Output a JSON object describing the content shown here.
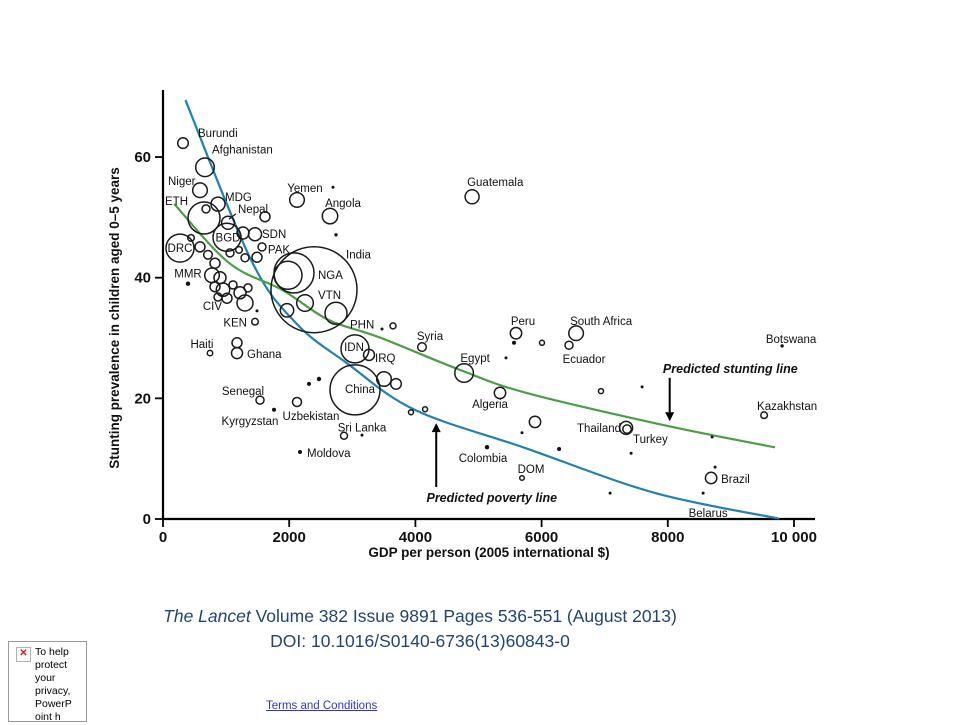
{
  "chart_data": {
    "type": "scatter",
    "title": "",
    "xlabel": "GDP per person (2005 international $)",
    "ylabel": "Stunting prevalence in children aged 0–5 years",
    "xlim": [
      0,
      10000
    ],
    "ylim": [
      0,
      71
    ],
    "grid": false,
    "x_ticks": [
      {
        "value": 0,
        "label": "0"
      },
      {
        "value": 2000,
        "label": "2000"
      },
      {
        "value": 4000,
        "label": "4000"
      },
      {
        "value": 6000,
        "label": "6000"
      },
      {
        "value": 8000,
        "label": "8000"
      },
      {
        "value": 10000,
        "label": "10 000"
      }
    ],
    "y_ticks": [
      {
        "value": 0,
        "label": "0"
      },
      {
        "value": 20,
        "label": "20"
      },
      {
        "value": 40,
        "label": "40"
      },
      {
        "value": 60,
        "label": "60"
      }
    ],
    "series": [
      {
        "name": "countries",
        "points": [
          {
            "name": "Burundi",
            "gdp": 317,
            "stunting": 62.3,
            "r": 5.3,
            "solid": 0,
            "label": {
              "dx": 15,
              "dy": -6,
              "anchor": "start"
            }
          },
          {
            "name": "Afghanistan",
            "gdp": 666,
            "stunting": 58.3,
            "r": 9.3,
            "solid": 0,
            "label": {
              "dx": 7,
              "dy": -14,
              "anchor": "start"
            }
          },
          {
            "name": "Niger",
            "gdp": 586,
            "stunting": 54.5,
            "r": 7.3,
            "solid": 0,
            "label": {
              "dx": -32,
              "dy": -5,
              "anchor": "start"
            }
          },
          {
            "name": "ETH",
            "gdp": 650,
            "stunting": 49.9,
            "r": 16,
            "solid": 0,
            "label": {
              "dx": -39,
              "dy": -13,
              "anchor": "start"
            }
          },
          {
            "name": "MDG",
            "gdp": 872,
            "stunting": 52.2,
            "r": 7,
            "solid": 0,
            "label": {
              "dx": 7,
              "dy": -3,
              "anchor": "start"
            }
          },
          {
            "name": "Nepal",
            "gdp": 1030,
            "stunting": 49.1,
            "r": 6.5,
            "solid": 0,
            "label": {
              "dx": 10,
              "dy": -10,
              "anchor": "start"
            }
          },
          {
            "name": "BGD",
            "gdp": 1014,
            "stunting": 46.7,
            "r": 14,
            "solid": 0,
            "label": {
              "dx": 1,
              "dy": 4,
              "anchor": "middle"
            }
          },
          {
            "name": "SDN",
            "gdp": 1458,
            "stunting": 47.2,
            "r": 6.5,
            "solid": 0,
            "label": {
              "dx": 7,
              "dy": 4,
              "anchor": "start"
            }
          },
          {
            "name": "DRC",
            "gdp": 269,
            "stunting": 44.9,
            "r": 14,
            "solid": 0,
            "label": {
              "dx": 0,
              "dy": 4,
              "anchor": "middle"
            }
          },
          {
            "name": "PAK",
            "gdp": 1981,
            "stunting": 40.4,
            "r": 14,
            "solid": 0,
            "label": {
              "dx": -9,
              "dy": -22,
              "anchor": "middle"
            }
          },
          {
            "name": "NGA",
            "gdp": 2076,
            "stunting": 40.8,
            "r": 20,
            "solid": 0,
            "label": {
              "dx": 24,
              "dy": 6,
              "anchor": "start"
            }
          },
          {
            "name": "India",
            "gdp": 2393,
            "stunting": 38.0,
            "r": 43,
            "solid": 0,
            "label": {
              "dx": 32,
              "dy": -31,
              "anchor": "start"
            }
          },
          {
            "name": "VTN",
            "gdp": 2251,
            "stunting": 35.8,
            "r": 8.3,
            "solid": 0,
            "label": {
              "dx": 13,
              "dy": -4,
              "anchor": "start"
            }
          },
          {
            "name": "PHN",
            "gdp": 2742,
            "stunting": 34.1,
            "r": 11,
            "solid": 0,
            "label": {
              "dx": 14,
              "dy": 15,
              "anchor": "start"
            }
          },
          {
            "name": "IDN",
            "gdp": 3043,
            "stunting": 28.2,
            "r": 14,
            "solid": 0,
            "label": {
              "dx": -1,
              "dy": 2,
              "anchor": "middle"
            }
          },
          {
            "name": "IRQ",
            "gdp": 3265,
            "stunting": 27.2,
            "r": 5.5,
            "solid": 0,
            "label": {
              "dx": 6,
              "dy": 7,
              "anchor": "start"
            }
          },
          {
            "name": "MMR",
            "gdp": 396,
            "stunting": 39.0,
            "r": 2.2,
            "solid": 1,
            "label": {
              "dx": 0,
              "dy": -6,
              "anchor": "middle"
            }
          },
          {
            "name": "CIV",
            "gdp": 1300,
            "stunting": 35.8,
            "r": 8,
            "solid": 0,
            "label": {
              "dx": -23,
              "dy": 7,
              "anchor": "end"
            }
          },
          {
            "name": "KEN",
            "gdp": 1458,
            "stunting": 32.7,
            "r": 3.3,
            "solid": 0,
            "label": {
              "dx": -8,
              "dy": 5,
              "anchor": "end"
            }
          },
          {
            "name": "Haiti",
            "gdp": 745,
            "stunting": 27.5,
            "r": 2.7,
            "solid": 0,
            "label": {
              "dx": -8,
              "dy": -5,
              "anchor": "middle"
            }
          },
          {
            "name": "Ghana",
            "gdp": 1173,
            "stunting": 27.5,
            "r": 5.5,
            "solid": 0,
            "label": {
              "dx": 10,
              "dy": 5,
              "anchor": "start"
            }
          },
          {
            "name": "Senegal",
            "gdp": 1537,
            "stunting": 19.7,
            "r": 4,
            "solid": 0,
            "label": {
              "dx": -17,
              "dy": -5,
              "anchor": "middle"
            }
          },
          {
            "name": "Kyrgyzstan",
            "gdp": 1759,
            "stunting": 18.1,
            "r": 2,
            "solid": 1,
            "label": {
              "dx": -24,
              "dy": 15,
              "anchor": "middle"
            }
          },
          {
            "name": "Uzbekistan",
            "gdp": 2124,
            "stunting": 19.4,
            "r": 4.5,
            "solid": 0,
            "label": {
              "dx": 14,
              "dy": 18,
              "anchor": "middle"
            }
          },
          {
            "name": "China",
            "gdp": 3043,
            "stunting": 21.4,
            "r": 25,
            "solid": 0,
            "label": {
              "dx": 5,
              "dy": 3,
              "anchor": "middle"
            }
          },
          {
            "name": "Sri Lanka",
            "gdp": 2869,
            "stunting": 13.8,
            "r": 3.5,
            "solid": 0,
            "label": {
              "dx": 18,
              "dy": -4,
              "anchor": "middle"
            }
          },
          {
            "name": "Moldova",
            "gdp": 2171,
            "stunting": 11.1,
            "r": 2,
            "solid": 1,
            "label": {
              "dx": 7,
              "dy": 5,
              "anchor": "start"
            }
          },
          {
            "name": "Yemen",
            "gdp": 2124,
            "stunting": 52.9,
            "r": 7.3,
            "solid": 0,
            "label": {
              "dx": 8,
              "dy": -8,
              "anchor": "middle"
            }
          },
          {
            "name": "Angola",
            "gdp": 2647,
            "stunting": 50.2,
            "r": 7.7,
            "solid": 0,
            "label": {
              "dx": 13,
              "dy": -9,
              "anchor": "middle"
            }
          },
          {
            "name": "Guatemala",
            "gdp": 4898,
            "stunting": 53.4,
            "r": 7,
            "solid": 0,
            "label": {
              "dx": -5,
              "dy": -11,
              "anchor": "start"
            }
          },
          {
            "name": "Syria",
            "gdp": 4105,
            "stunting": 28.5,
            "r": 4.3,
            "solid": 0,
            "label": {
              "dx": 8,
              "dy": -7,
              "anchor": "middle"
            }
          },
          {
            "name": "Egypt",
            "gdp": 4771,
            "stunting": 24.2,
            "r": 9.3,
            "solid": 0,
            "label": {
              "dx": 11,
              "dy": -11,
              "anchor": "middle"
            }
          },
          {
            "name": "Algeria",
            "gdp": 5341,
            "stunting": 20.9,
            "r": 5.7,
            "solid": 0,
            "label": {
              "dx": -10,
              "dy": 15,
              "anchor": "middle"
            }
          },
          {
            "name": "Peru",
            "gdp": 5595,
            "stunting": 30.8,
            "r": 5.7,
            "solid": 0,
            "label": {
              "dx": 7,
              "dy": -8,
              "anchor": "middle"
            }
          },
          {
            "name": "South Africa",
            "gdp": 6546,
            "stunting": 30.8,
            "r": 7.3,
            "solid": 0,
            "label": {
              "dx": 25,
              "dy": -8,
              "anchor": "middle"
            }
          },
          {
            "name": "Ecuador",
            "gdp": 6435,
            "stunting": 28.8,
            "r": 4,
            "solid": 0,
            "label": {
              "dx": 15,
              "dy": 18,
              "anchor": "middle"
            }
          },
          {
            "name": "Colombia",
            "gdp": 5135,
            "stunting": 11.9,
            "r": 2.2,
            "solid": 1,
            "label": {
              "dx": -4,
              "dy": 15,
              "anchor": "middle"
            }
          },
          {
            "name": "DOM",
            "gdp": 5690,
            "stunting": 6.8,
            "r": 2.3,
            "solid": 0,
            "label": {
              "dx": 9,
              "dy": -5,
              "anchor": "middle"
            }
          },
          {
            "name": "Thailand",
            "gdp": 7339,
            "stunting": 15.1,
            "r": 6.5,
            "solid": 0,
            "label": {
              "dx": -5,
              "dy": 4,
              "anchor": "end"
            }
          },
          {
            "name": "Turkey",
            "gdp": 7354,
            "stunting": 14.9,
            "r": 4.2,
            "solid": 0,
            "label": {
              "dx": 6,
              "dy": 14,
              "anchor": "start"
            }
          },
          {
            "name": "Kazakhstan",
            "gdp": 9526,
            "stunting": 17.2,
            "r": 3.3,
            "solid": 0,
            "label": {
              "dx": 23,
              "dy": -5,
              "anchor": "middle"
            }
          },
          {
            "name": "Botswana",
            "gdp": 9811,
            "stunting": 28.7,
            "r": 1.7,
            "solid": 1,
            "label": {
              "dx": 9,
              "dy": -3,
              "anchor": "middle"
            }
          },
          {
            "name": "Brazil",
            "gdp": 8686,
            "stunting": 6.8,
            "r": 5.7,
            "solid": 0,
            "label": {
              "dx": 10,
              "dy": 5,
              "anchor": "start"
            }
          },
          {
            "name": "Belarus",
            "gdp": 8559,
            "stunting": 4.3,
            "r": 1.5,
            "solid": 1,
            "label": {
              "dx": 5,
              "dy": 24,
              "anchor": "middle"
            }
          }
        ]
      }
    ],
    "unlabeled_points": [
      [
        2694,
        55.0,
        1.5,
        1
      ],
      [
        2742,
        47.1,
        1.7,
        1
      ],
      [
        1617,
        50.1,
        5,
        0
      ],
      [
        682,
        51.4,
        4,
        0
      ],
      [
        1268,
        47.4,
        6,
        0
      ],
      [
        1569,
        45.1,
        4,
        0
      ],
      [
        444,
        46.6,
        3.3,
        0
      ],
      [
        586,
        45.1,
        5,
        0
      ],
      [
        713,
        43.8,
        4.3,
        0
      ],
      [
        824,
        42.4,
        5,
        0
      ],
      [
        1062,
        44.1,
        4,
        0
      ],
      [
        1205,
        44.6,
        3.3,
        0
      ],
      [
        1300,
        43.3,
        4,
        0
      ],
      [
        1490,
        43.4,
        5,
        0
      ],
      [
        777,
        40.4,
        7.3,
        0
      ],
      [
        903,
        40.0,
        6,
        0
      ],
      [
        824,
        38.5,
        5,
        0
      ],
      [
        951,
        38.0,
        6.7,
        0
      ],
      [
        1110,
        38.8,
        4,
        0
      ],
      [
        1220,
        37.5,
        6,
        0
      ],
      [
        1347,
        38.3,
        4,
        0
      ],
      [
        872,
        36.8,
        4,
        0
      ],
      [
        1014,
        36.6,
        5,
        0
      ],
      [
        1965,
        34.6,
        6.7,
        0
      ],
      [
        1490,
        34.5,
        1.5,
        1
      ],
      [
        1173,
        29.2,
        5,
        0
      ],
      [
        3503,
        23.2,
        7.3,
        0
      ],
      [
        3693,
        22.4,
        5.3,
        0
      ],
      [
        2314,
        22.4,
        2,
        1
      ],
      [
        2473,
        23.2,
        2.2,
        1
      ],
      [
        3154,
        13.9,
        1.5,
        1
      ],
      [
        3645,
        32.0,
        3,
        0
      ],
      [
        3471,
        31.5,
        1.5,
        1
      ],
      [
        5436,
        26.7,
        1.5,
        1
      ],
      [
        5563,
        29.2,
        2,
        1
      ],
      [
        6007,
        29.2,
        2.5,
        0
      ],
      [
        5896,
        16.1,
        5.7,
        0
      ],
      [
        5690,
        14.3,
        1.5,
        1
      ],
      [
        6277,
        11.6,
        2,
        1
      ],
      [
        6942,
        21.2,
        2.5,
        0
      ],
      [
        7592,
        21.9,
        1.5,
        1
      ],
      [
        8702,
        13.6,
        1.5,
        1
      ],
      [
        7418,
        10.9,
        1.5,
        1
      ],
      [
        7085,
        4.3,
        1.5,
        1
      ],
      [
        8749,
        8.6,
        1.5,
        1
      ],
      [
        4153,
        18.2,
        2.5,
        0
      ],
      [
        3931,
        17.7,
        2.5,
        0
      ]
    ],
    "curves": [
      {
        "name": "Predicted poverty line",
        "color": "#2180B4",
        "points": [
          [
            361,
            69.3
          ],
          [
            1397,
            42.9
          ],
          [
            2104,
            32.5
          ],
          [
            2905,
            25.9
          ],
          [
            3988,
            18.1
          ],
          [
            5730,
            11.8
          ],
          [
            7802,
            4.3
          ],
          [
            9750,
            0.1
          ]
        ]
      },
      {
        "name": "Predicted stunting line",
        "color": "#4C9E45",
        "points": [
          [
            188,
            52.1
          ],
          [
            1052,
            42.4
          ],
          [
            1884,
            38.0
          ],
          [
            2622,
            33.0
          ],
          [
            3407,
            30.2
          ],
          [
            4710,
            24.7
          ],
          [
            5761,
            20.9
          ],
          [
            8006,
            15.4
          ],
          [
            9686,
            11.9
          ]
        ]
      }
    ],
    "annotations": [
      {
        "text": "Predicted stunting line",
        "gdp": 8990,
        "stunting": 24.2,
        "arrow": {
          "gdp": 8030,
          "from": 23.4,
          "to": 16.2
        }
      },
      {
        "text": "Predicted poverty line",
        "gdp": 5210,
        "stunting": 2.8,
        "arrow": {
          "gdp": 4330,
          "from": 5.3,
          "to": 15.9
        }
      }
    ],
    "leader_lines": [
      [
        [
          1157,
          50.6
        ],
        [
          1046,
          49.7
        ]
      ]
    ]
  },
  "citation": {
    "journal": "The Lancet",
    "line1_rest": " Volume 382 Issue 9891 Pages 536-551 (August 2013)",
    "line2": "DOI: 10.1016/S0140-6736(13)60843-0",
    "color": "#1F4473"
  },
  "privacy_notice": {
    "icon": "red-x-icon",
    "text": "To help\nprotect\nyour\nprivacy,\nPowerP\noint h"
  },
  "footer": {
    "terms_link": " Terms and Conditions"
  }
}
